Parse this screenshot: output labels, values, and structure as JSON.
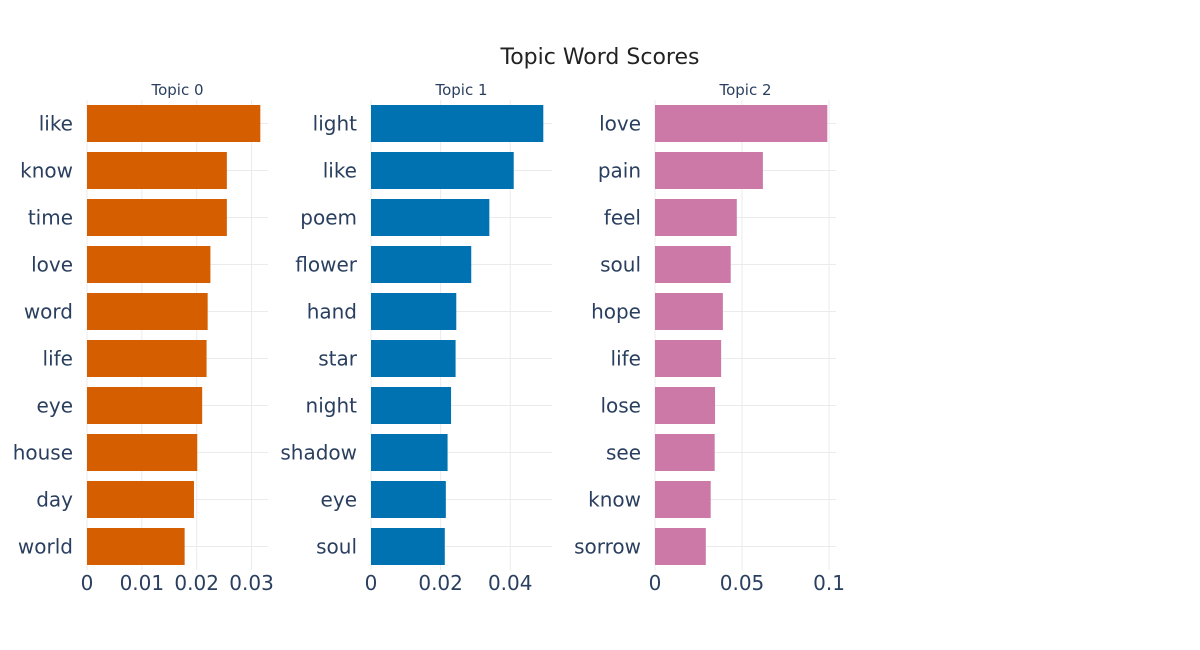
{
  "chart_data": {
    "type": "bar",
    "orientation": "horizontal",
    "title": "Topic Word Scores",
    "grid": true,
    "panels": [
      {
        "title": "Topic 0",
        "color": "#D55E00",
        "xlim": [
          0,
          0.033
        ],
        "ticks": [
          0,
          0.01,
          0.02,
          0.03
        ],
        "tick_labels": [
          "0",
          "0.01",
          "0.02",
          "0.03"
        ],
        "categories": [
          "like",
          "know",
          "time",
          "love",
          "word",
          "life",
          "eye",
          "house",
          "day",
          "world"
        ],
        "values": [
          0.0316,
          0.0255,
          0.0255,
          0.0225,
          0.022,
          0.0218,
          0.021,
          0.0201,
          0.0195,
          0.0178
        ]
      },
      {
        "title": "Topic 1",
        "color": "#0072B2",
        "xlim": [
          0,
          0.052
        ],
        "ticks": [
          0,
          0.02,
          0.04
        ],
        "tick_labels": [
          "0",
          "0.02",
          "0.04"
        ],
        "categories": [
          "light",
          "like",
          "poem",
          "flower",
          "hand",
          "star",
          "night",
          "shadow",
          "eye",
          "soul"
        ],
        "values": [
          0.0495,
          0.041,
          0.034,
          0.0288,
          0.0245,
          0.0243,
          0.023,
          0.022,
          0.0215,
          0.0212
        ]
      },
      {
        "title": "Topic 2",
        "color": "#CC79A7",
        "xlim": [
          0,
          0.104
        ],
        "ticks": [
          0,
          0.05,
          0.1
        ],
        "tick_labels": [
          "0",
          "0.05",
          "0.1"
        ],
        "categories": [
          "love",
          "pain",
          "feel",
          "soul",
          "hope",
          "life",
          "lose",
          "see",
          "know",
          "sorrow"
        ],
        "values": [
          0.099,
          0.062,
          0.047,
          0.0435,
          0.039,
          0.038,
          0.0345,
          0.0343,
          0.032,
          0.0292
        ]
      }
    ]
  }
}
